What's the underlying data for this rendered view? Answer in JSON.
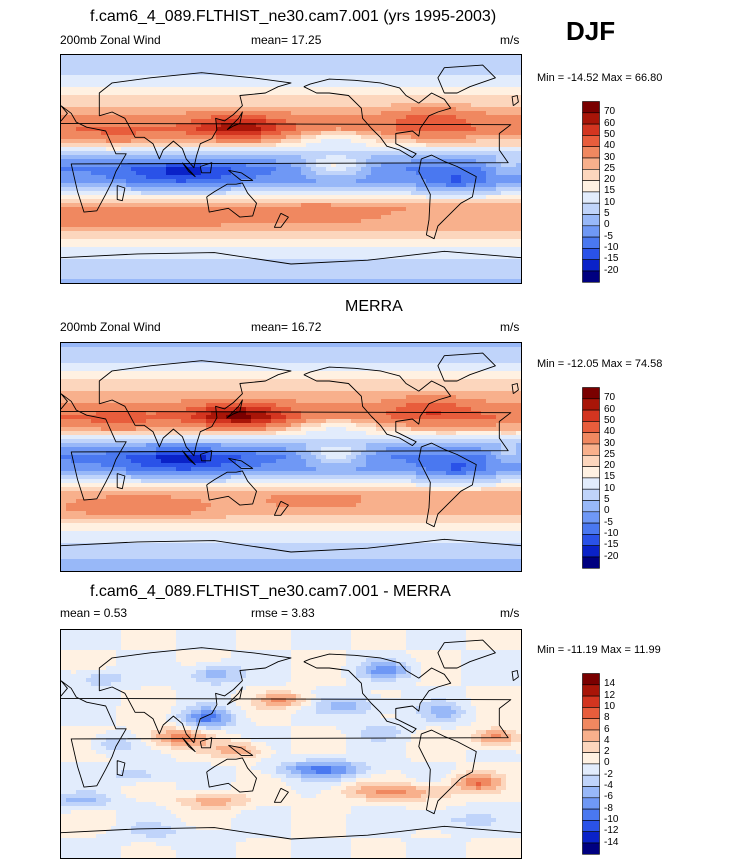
{
  "season": "DJF",
  "colors": {
    "full": [
      "#000080",
      "#0a22c8",
      "#2a52e8",
      "#4a78f0",
      "#6f98f5",
      "#98b8f8",
      "#c0d4fa",
      "#e2ecfc",
      "#fff1e2",
      "#fcd6bd",
      "#f8b08c",
      "#f08860",
      "#e85d3c",
      "#d33520",
      "#a81508",
      "#7a0000"
    ],
    "diff": [
      "#000080",
      "#0a22c8",
      "#2a52e8",
      "#4a78f0",
      "#6f98f5",
      "#98b8f8",
      "#c0d4fa",
      "#e2ecfc",
      "#fff1e2",
      "#fcd6bd",
      "#f8b08c",
      "#f08860",
      "#e85d3c",
      "#d33520",
      "#a81508",
      "#7a0000"
    ]
  },
  "panels": [
    {
      "title": "f.cam6_4_089.FLTHIST_ne30.cam7.001 (yrs 1995-2003)",
      "left_label": "200mb Zonal Wind",
      "mid_label": "mean=  17.25",
      "units": "m/s",
      "minmax": "Min = -14.52 Max =  66.80"
    },
    {
      "title": "MERRA",
      "left_label": "200mb Zonal Wind",
      "mid_label": "mean=  16.72",
      "units": "m/s",
      "minmax": "Min = -12.05 Max =  74.58"
    },
    {
      "title": "f.cam6_4_089.FLTHIST_ne30.cam7.001 - MERRA",
      "left_label": "mean =   0.53",
      "mid_label": "rmse =   3.83",
      "units": "m/s",
      "minmax": "Min = -11.19 Max =  11.99"
    }
  ],
  "chart_data": [
    {
      "type": "heatmap",
      "title": "f.cam6_4_089.FLTHIST_ne30.cam7.001 (yrs 1995-2003)",
      "variable": "200mb Zonal Wind",
      "units": "m/s",
      "mean": 17.25,
      "min": -14.52,
      "max": 66.8,
      "colorbar_levels": [
        "70",
        "60",
        "50",
        "40",
        "30",
        "25",
        "20",
        "15",
        "10",
        "5",
        "0",
        "-5",
        "-10",
        "-15",
        "-20"
      ],
      "lat_profile": [
        {
          "lat": 90,
          "u": 5
        },
        {
          "lat": 75,
          "u": 10
        },
        {
          "lat": 60,
          "u": 18
        },
        {
          "lat": 45,
          "u": 28
        },
        {
          "lat": 32,
          "u": 38
        },
        {
          "lat": 20,
          "u": 22
        },
        {
          "lat": 10,
          "u": 3
        },
        {
          "lat": 0,
          "u": -5
        },
        {
          "lat": -10,
          "u": -2
        },
        {
          "lat": -20,
          "u": 12
        },
        {
          "lat": -30,
          "u": 30
        },
        {
          "lat": -45,
          "u": 28
        },
        {
          "lat": -60,
          "u": 15
        },
        {
          "lat": -75,
          "u": 8
        },
        {
          "lat": -90,
          "u": 4
        }
      ]
    },
    {
      "type": "heatmap",
      "title": "MERRA",
      "variable": "200mb Zonal Wind",
      "units": "m/s",
      "mean": 16.72,
      "min": -12.05,
      "max": 74.58,
      "colorbar_levels": [
        "70",
        "60",
        "50",
        "40",
        "30",
        "25",
        "20",
        "15",
        "10",
        "5",
        "0",
        "-5",
        "-10",
        "-15",
        "-20"
      ],
      "lat_profile": [
        {
          "lat": 90,
          "u": 4
        },
        {
          "lat": 75,
          "u": 10
        },
        {
          "lat": 60,
          "u": 20
        },
        {
          "lat": 45,
          "u": 28
        },
        {
          "lat": 32,
          "u": 40
        },
        {
          "lat": 20,
          "u": 22
        },
        {
          "lat": 10,
          "u": 2
        },
        {
          "lat": 0,
          "u": -6
        },
        {
          "lat": -10,
          "u": -2
        },
        {
          "lat": -20,
          "u": 12
        },
        {
          "lat": -30,
          "u": 28
        },
        {
          "lat": -45,
          "u": 26
        },
        {
          "lat": -60,
          "u": 14
        },
        {
          "lat": -75,
          "u": 6
        },
        {
          "lat": -90,
          "u": 3
        }
      ]
    },
    {
      "type": "heatmap",
      "title": "f.cam6_4_089.FLTHIST_ne30.cam7.001 - MERRA",
      "units": "m/s",
      "mean": 0.53,
      "rmse": 3.83,
      "min": -11.19,
      "max": 11.99,
      "colorbar_levels": [
        "14",
        "12",
        "10",
        "8",
        "6",
        "4",
        "2",
        "0",
        "-2",
        "-4",
        "-6",
        "-8",
        "-10",
        "-12",
        "-14"
      ]
    }
  ]
}
